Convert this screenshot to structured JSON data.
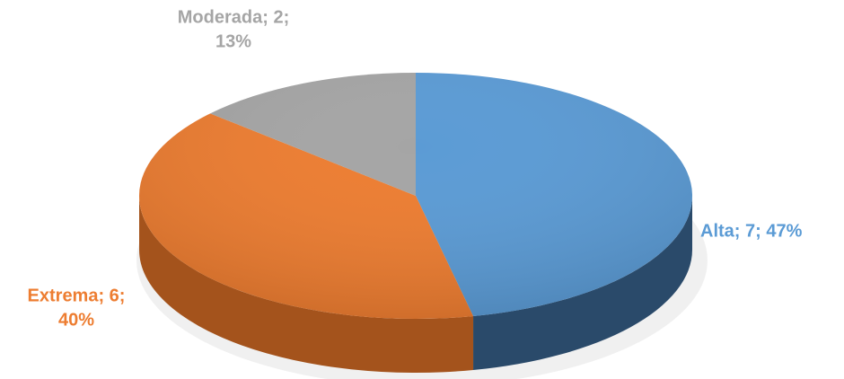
{
  "chart_data": {
    "type": "pie",
    "values": [
      7,
      6,
      2
    ],
    "value_labels": [
      [
        "Alta; 7; 47%"
      ],
      [
        "Extrema; 6;",
        "40%"
      ],
      [
        "Moderada; 2;",
        "13%"
      ]
    ],
    "colors": [
      "#5b9bd5",
      "#ed7d31",
      "#a5a5a5"
    ],
    "side_colors": [
      "#2a4a6a",
      "#a4531c",
      "#6e6e6e"
    ]
  }
}
